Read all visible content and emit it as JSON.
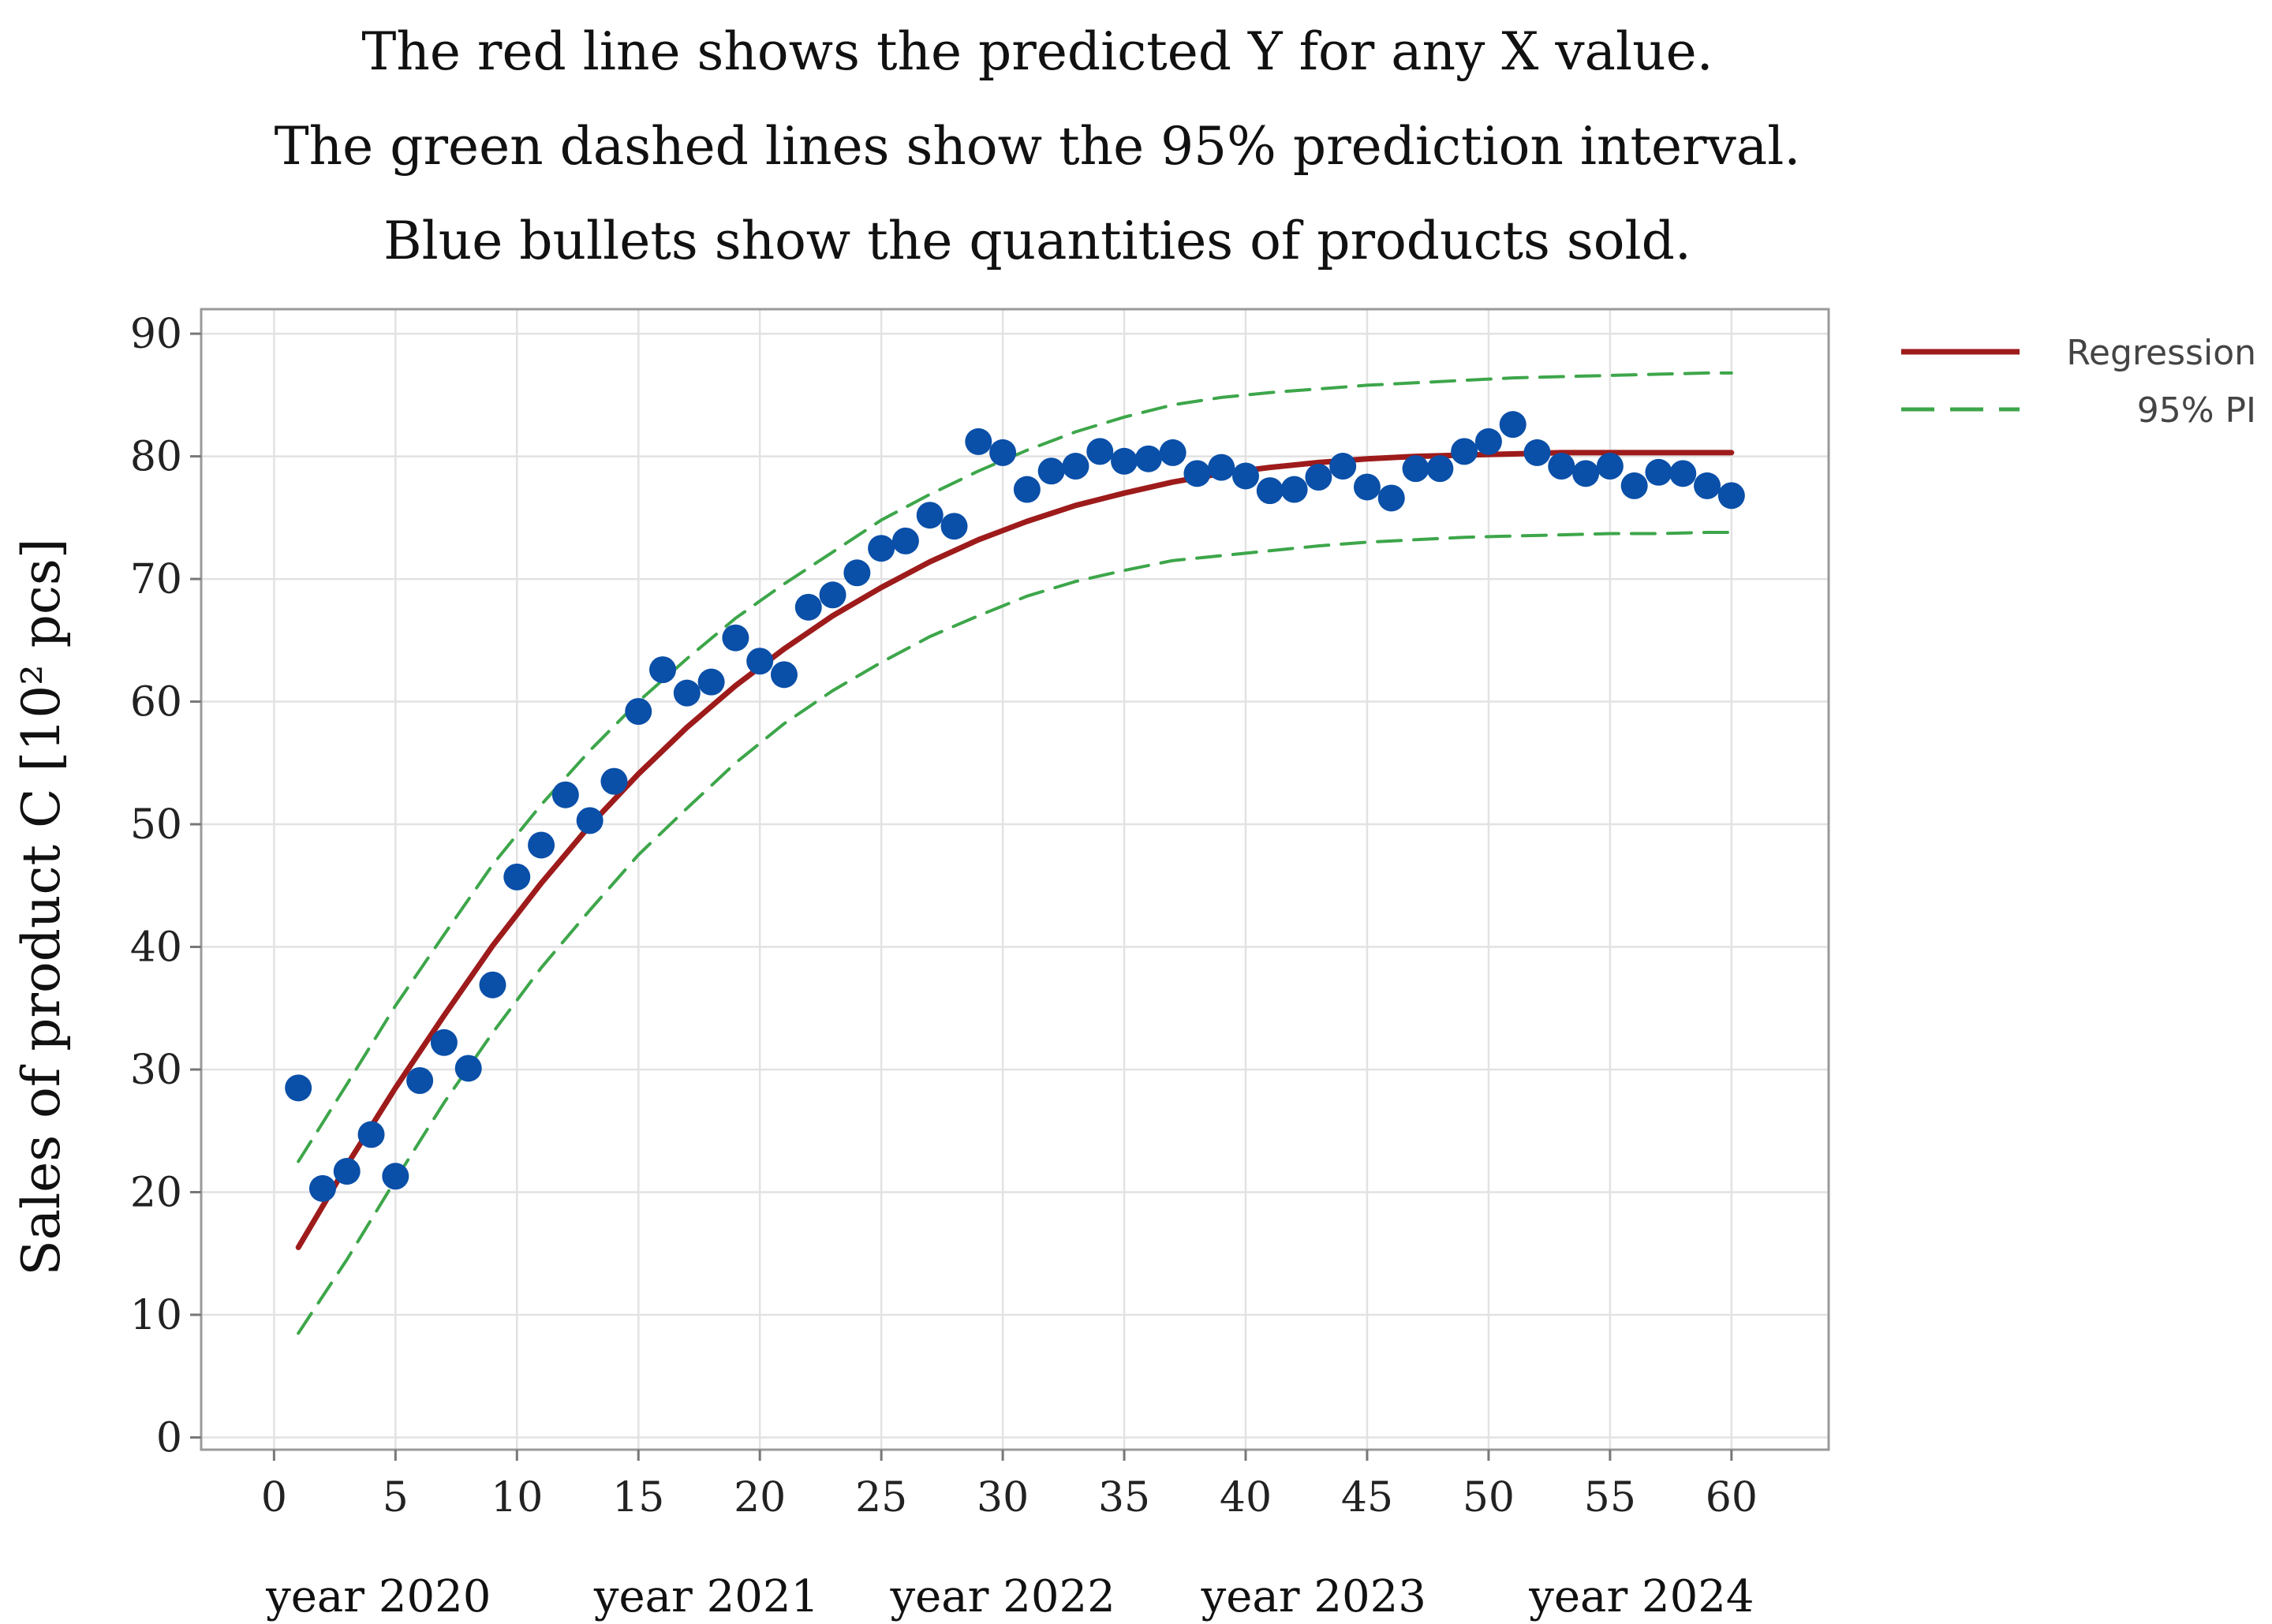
{
  "chart_data": {
    "type": "scatter",
    "title": [
      "The red line shows the predicted Y for any  X value.",
      "The green dashed lines show the 95% prediction interval.",
      "Blue bullets show the quantities of products sold."
    ],
    "xlabel": "",
    "ylabel": "Sales of product C [10² pcs]",
    "xlim": [
      -3,
      64
    ],
    "ylim": [
      -1,
      92
    ],
    "xticks": [
      0,
      5,
      10,
      15,
      20,
      25,
      30,
      35,
      40,
      45,
      50,
      55,
      60
    ],
    "yticks": [
      0,
      10,
      20,
      30,
      40,
      50,
      60,
      70,
      80,
      90
    ],
    "grid": true,
    "legend_position": "top-right outside",
    "year_labels": [
      {
        "text": "year 2020",
        "x": 4.3
      },
      {
        "text": "year 2021",
        "x": 17.8
      },
      {
        "text": "year 2022",
        "x": 30.0
      },
      {
        "text": "year 2023",
        "x": 42.8
      },
      {
        "text": "year 2024",
        "x": 56.3
      }
    ],
    "colors": {
      "points": "#0a4fa8",
      "regression": "#9e1b1b",
      "interval": "#3da64a",
      "grid": "#e2e2e2",
      "frame": "#9a9a9a"
    },
    "series": [
      {
        "name": "Sales",
        "kind": "scatter",
        "x": [
          1,
          2,
          3,
          4,
          5,
          6,
          7,
          8,
          9,
          10,
          11,
          12,
          13,
          14,
          15,
          16,
          17,
          18,
          19,
          20,
          21,
          22,
          23,
          24,
          25,
          26,
          27,
          28,
          29,
          30,
          31,
          32,
          33,
          34,
          35,
          36,
          37,
          38,
          39,
          40,
          41,
          42,
          43,
          44,
          45,
          46,
          47,
          48,
          49,
          50,
          51,
          52,
          53,
          54,
          55,
          56,
          57,
          58,
          59,
          60
        ],
        "y": [
          28.5,
          20.3,
          21.7,
          24.7,
          21.3,
          29.1,
          32.2,
          30.1,
          36.9,
          45.7,
          48.3,
          52.4,
          50.3,
          53.5,
          59.2,
          62.6,
          60.7,
          61.6,
          65.2,
          63.3,
          62.2,
          67.7,
          68.7,
          70.5,
          72.5,
          73.1,
          75.2,
          74.3,
          81.2,
          80.3,
          77.3,
          78.8,
          79.2,
          80.4,
          79.6,
          79.8,
          80.3,
          78.6,
          79.1,
          78.4,
          77.2,
          77.3,
          78.3,
          79.2,
          77.5,
          76.6,
          79.0,
          79.0,
          80.4,
          81.2,
          82.6,
          80.3,
          79.2,
          78.6,
          79.2,
          77.6,
          78.7,
          78.6,
          77.6,
          76.8
        ]
      },
      {
        "name": "Regression",
        "kind": "line",
        "x": [
          1,
          3,
          5,
          7,
          9,
          11,
          13,
          15,
          17,
          19,
          21,
          23,
          25,
          27,
          29,
          31,
          33,
          35,
          37,
          39,
          41,
          43,
          45,
          47,
          49,
          51,
          53,
          55,
          57,
          59,
          60
        ],
        "y": [
          15.5,
          22.2,
          28.5,
          34.4,
          40.1,
          45.2,
          49.9,
          54.1,
          57.9,
          61.3,
          64.3,
          67.0,
          69.3,
          71.4,
          73.2,
          74.7,
          76.0,
          77.0,
          77.9,
          78.6,
          79.1,
          79.5,
          79.8,
          80.0,
          80.1,
          80.2,
          80.3,
          80.3,
          80.3,
          80.3,
          80.3
        ]
      },
      {
        "name": "95% PI",
        "kind": "dashed",
        "x": [
          1,
          3,
          5,
          7,
          9,
          11,
          13,
          15,
          17,
          19,
          21,
          23,
          25,
          27,
          29,
          31,
          33,
          35,
          37,
          39,
          41,
          43,
          45,
          47,
          49,
          51,
          53,
          55,
          57,
          59,
          60
        ],
        "y": [
          22.5,
          28.8,
          35.2,
          41.0,
          46.7,
          51.6,
          56.0,
          60.0,
          63.5,
          66.8,
          69.6,
          72.2,
          74.8,
          76.9,
          78.8,
          80.5,
          82.0,
          83.2,
          84.2,
          84.8,
          85.2,
          85.5,
          85.8,
          86.0,
          86.2,
          86.4,
          86.5,
          86.6,
          86.7,
          86.8,
          86.8
        ]
      },
      {
        "name": "95% PI lower",
        "kind": "dashed",
        "x": [
          1,
          3,
          5,
          7,
          9,
          11,
          13,
          15,
          17,
          19,
          21,
          23,
          25,
          27,
          29,
          31,
          33,
          35,
          37,
          39,
          41,
          43,
          45,
          47,
          49,
          51,
          53,
          55,
          57,
          59,
          60
        ],
        "y": [
          8.5,
          14.5,
          21.0,
          27.3,
          33.0,
          38.3,
          43.0,
          47.5,
          51.3,
          55.0,
          58.2,
          60.9,
          63.2,
          65.3,
          67.0,
          68.6,
          69.8,
          70.7,
          71.5,
          71.9,
          72.3,
          72.7,
          73.0,
          73.2,
          73.4,
          73.5,
          73.6,
          73.7,
          73.7,
          73.8,
          73.8
        ]
      }
    ]
  },
  "legend": {
    "regression_label": "Regression",
    "interval_label": "95% PI"
  }
}
